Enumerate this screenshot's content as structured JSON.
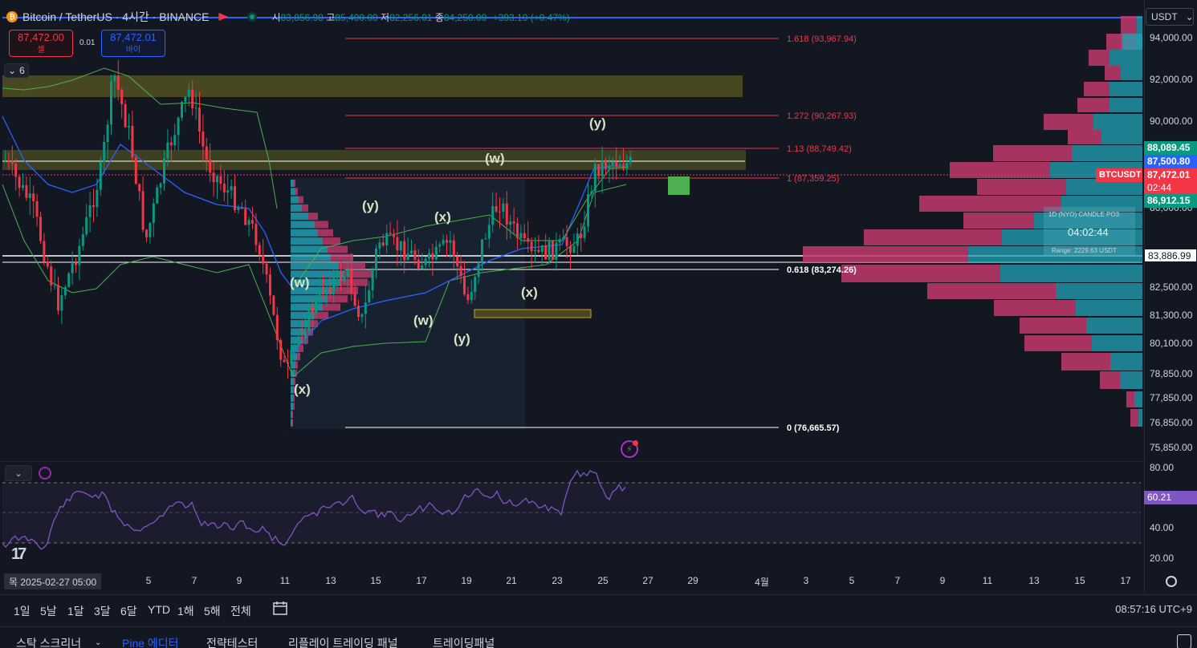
{
  "header": {
    "symbol": "Bitcoin / TetherUS · 4시간 · BINANCE",
    "open_key": "시",
    "open": "83,856.98",
    "high_key": "고",
    "high": "85,400.00",
    "low_key": "저",
    "low": "82,256.01",
    "close_key": "종",
    "close": "84,250.09",
    "change": "+393.10 (+0.47%)"
  },
  "trade": {
    "sell_price": "87,472.00",
    "sell_label": "셀",
    "spread": "0.01",
    "buy_price": "87,472.01",
    "buy_label": "바이"
  },
  "collapse_count": "6",
  "currency": "USDT",
  "price_scale": {
    "ticks": [
      "94,000.00",
      "92,000.00",
      "90,000.00",
      "86,000.00",
      "82,500.00",
      "81,300.00",
      "80,100.00",
      "78,850.00",
      "77,850.00",
      "76,850.00",
      "75,850.00"
    ],
    "labels": {
      "l1": "88,089.45",
      "l2": "87,500.80",
      "symbol": "BTCUSDT",
      "last": "87,472.01",
      "countdown": "02:44",
      "l4": "86,912.15",
      "hline": "83,886.99"
    },
    "rsi_ticks": [
      "80.00",
      "40.00",
      "20.00"
    ],
    "rsi_value": "60.21"
  },
  "fib_labels": {
    "f1618": "1.618 (93,967.94)",
    "f1272": "1.272 (90,267.93)",
    "f113": "1.13 (88,749.42)",
    "f1": "1 (87,359.25)",
    "f0618": "0.618 (83,274.26)",
    "f0": "0 (76,665.57)"
  },
  "waves": {
    "w1": "(w)",
    "x1": "(x)",
    "y1": "(y)",
    "x2": "(x)",
    "w2": "(w)",
    "y2": "(y)",
    "x3": "(x)",
    "w3": "(w)",
    "y3": "(y)"
  },
  "timer_box": {
    "title": "1D (NYO) CANDLE PO3",
    "time": "04:02:44",
    "range": "Range: 2229.63 USDT"
  },
  "time_axis": {
    "date_label": "목 2025-02-27  05:00",
    "ticks": [
      "5",
      "7",
      "9",
      "11",
      "13",
      "15",
      "17",
      "19",
      "21",
      "23",
      "25",
      "27",
      "29",
      "4월",
      "3",
      "5",
      "7",
      "9",
      "11",
      "13",
      "15",
      "17"
    ]
  },
  "ranges": [
    "1일",
    "5날",
    "1달",
    "3달",
    "6달",
    "YTD",
    "1해",
    "5해",
    "전체"
  ],
  "clock": "08:57:16 UTC+9",
  "bottom_tabs": [
    "스탁 스크리너",
    "Pine 에디터",
    "전략테스터",
    "리플레이 트레이딩 패널",
    "트레이딩패널"
  ],
  "colors": {
    "up": "#089981",
    "down": "#f23645",
    "fib": "#f23645",
    "volume_up": "#22a3b5",
    "volume_down": "#c2396b",
    "rsi": "#7e57c2",
    "zone": "#6b6b2a"
  }
}
